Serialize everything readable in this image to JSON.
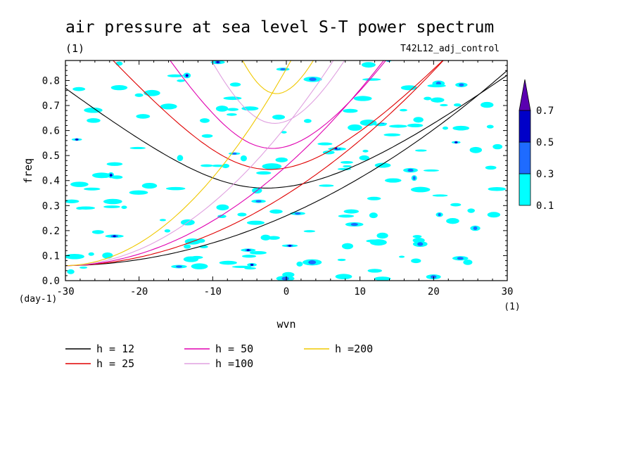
{
  "chart_data": {
    "type": "contour",
    "title": "air pressure at sea level S-T power spectrum",
    "units_label": "(1)",
    "experiment": "T42L12_adj_control",
    "xlabel": "wvn",
    "ylabel": "freq",
    "x_unit": "(1)",
    "y_unit": "(day-1)",
    "xlim": [
      -30,
      30
    ],
    "ylim": [
      0,
      0.88
    ],
    "x_ticks": [
      -30,
      -20,
      -10,
      0,
      10,
      20,
      30
    ],
    "x_tick_labels": [
      "-30",
      "-20",
      "-10",
      "0",
      "10",
      "20",
      "30"
    ],
    "y_ticks": [
      0,
      0.1,
      0.2,
      0.3,
      0.4,
      0.5,
      0.6,
      0.7,
      0.8
    ],
    "y_tick_labels": [
      "0.0",
      "0.1",
      "0.2",
      "0.3",
      "0.4",
      "0.5",
      "0.6",
      "0.7",
      "0.8"
    ],
    "colorbar": {
      "levels": [
        0.1,
        0.3,
        0.5,
        0.7
      ],
      "level_labels": [
        "0.1",
        "0.3",
        "0.5",
        "0.7"
      ],
      "colors": [
        "#00ffff",
        "#1e6bff",
        "#0000c8",
        "#5a00b0"
      ],
      "extend": "max"
    },
    "dispersion_curves": [
      {
        "name": "h = 12",
        "h": 12,
        "color": "#000000"
      },
      {
        "name": "h = 25",
        "h": 25,
        "color": "#e00000"
      },
      {
        "name": "h = 50",
        "h": 50,
        "color": "#e000b0"
      },
      {
        "name": "h =100",
        "h": 100,
        "color": "#e0a0e0"
      },
      {
        "name": "h =200",
        "h": 200,
        "color": "#f0c800"
      }
    ],
    "legend_position": "bottom"
  }
}
